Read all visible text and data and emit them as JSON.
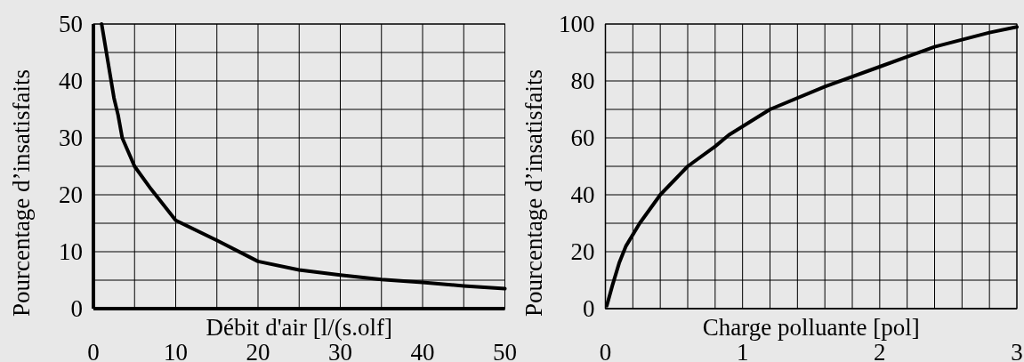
{
  "chart_data": [
    {
      "type": "line",
      "xlabel": "Débit d'air [l/(s.olf]",
      "ylabel": "Pourcentage d’insatisfaits",
      "grid": true,
      "line_style": "solid",
      "xlim": [
        0,
        50
      ],
      "ylim": [
        0,
        50
      ],
      "xticks": [
        0,
        {
          "value": 5,
          "label": null
        },
        10,
        {
          "value": 15,
          "label": null
        },
        20,
        {
          "value": 25,
          "label": null
        },
        30,
        {
          "value": 35,
          "label": null
        },
        40,
        {
          "value": 45,
          "label": null
        },
        50
      ],
      "yticks": [
        0,
        {
          "value": 5,
          "label": null
        },
        10,
        {
          "value": 15,
          "label": null
        },
        20,
        {
          "value": 25,
          "label": null
        },
        30,
        {
          "value": 35,
          "label": null
        },
        40,
        {
          "value": 45,
          "label": null
        },
        50
      ],
      "series": [
        {
          "color": "#000000",
          "x": [
            1,
            2.5,
            3,
            3.5,
            5,
            7,
            10,
            15,
            20,
            25,
            30,
            35,
            40,
            45,
            50
          ],
          "values": [
            50,
            37,
            34,
            30,
            25,
            21,
            15.5,
            12,
            8.3,
            6.8,
            5.9,
            5.1,
            4.6,
            4,
            3.5
          ]
        }
      ]
    },
    {
      "type": "line",
      "xlabel": "Charge polluante [pol]",
      "ylabel": "Pourcentage d’insatisfaits",
      "grid": true,
      "line_style": "solid",
      "xlim": [
        0,
        3
      ],
      "ylim": [
        0,
        100
      ],
      "xticks": [
        0,
        {
          "value": 0.2,
          "label": null
        },
        {
          "value": 0.4,
          "label": null
        },
        {
          "value": 0.6,
          "label": null
        },
        {
          "value": 0.8,
          "label": null
        },
        1,
        {
          "value": 1.2,
          "label": null
        },
        {
          "value": 1.4,
          "label": null
        },
        {
          "value": 1.6,
          "label": null
        },
        {
          "value": 1.8,
          "label": null
        },
        2,
        {
          "value": 2.2,
          "label": null
        },
        {
          "value": 2.4,
          "label": null
        },
        {
          "value": 2.6,
          "label": null
        },
        {
          "value": 2.8,
          "label": null
        },
        3
      ],
      "yticks": [
        0,
        {
          "value": 10,
          "label": null
        },
        20,
        {
          "value": 30,
          "label": null
        },
        40,
        {
          "value": 50,
          "label": null
        },
        60,
        {
          "value": 70,
          "label": null
        },
        80,
        {
          "value": 90,
          "label": null
        },
        100
      ],
      "series": [
        {
          "color": "#000000",
          "x": [
            0.01,
            0.05,
            0.1,
            0.15,
            0.25,
            0.4,
            0.5,
            0.6,
            0.8,
            0.9,
            1.2,
            1.6,
            2,
            2.4,
            2.8,
            3
          ],
          "values": [
            1,
            8,
            16,
            22,
            30,
            40,
            45,
            50,
            57,
            61,
            70,
            78,
            85,
            92,
            97,
            99
          ]
        }
      ]
    }
  ]
}
